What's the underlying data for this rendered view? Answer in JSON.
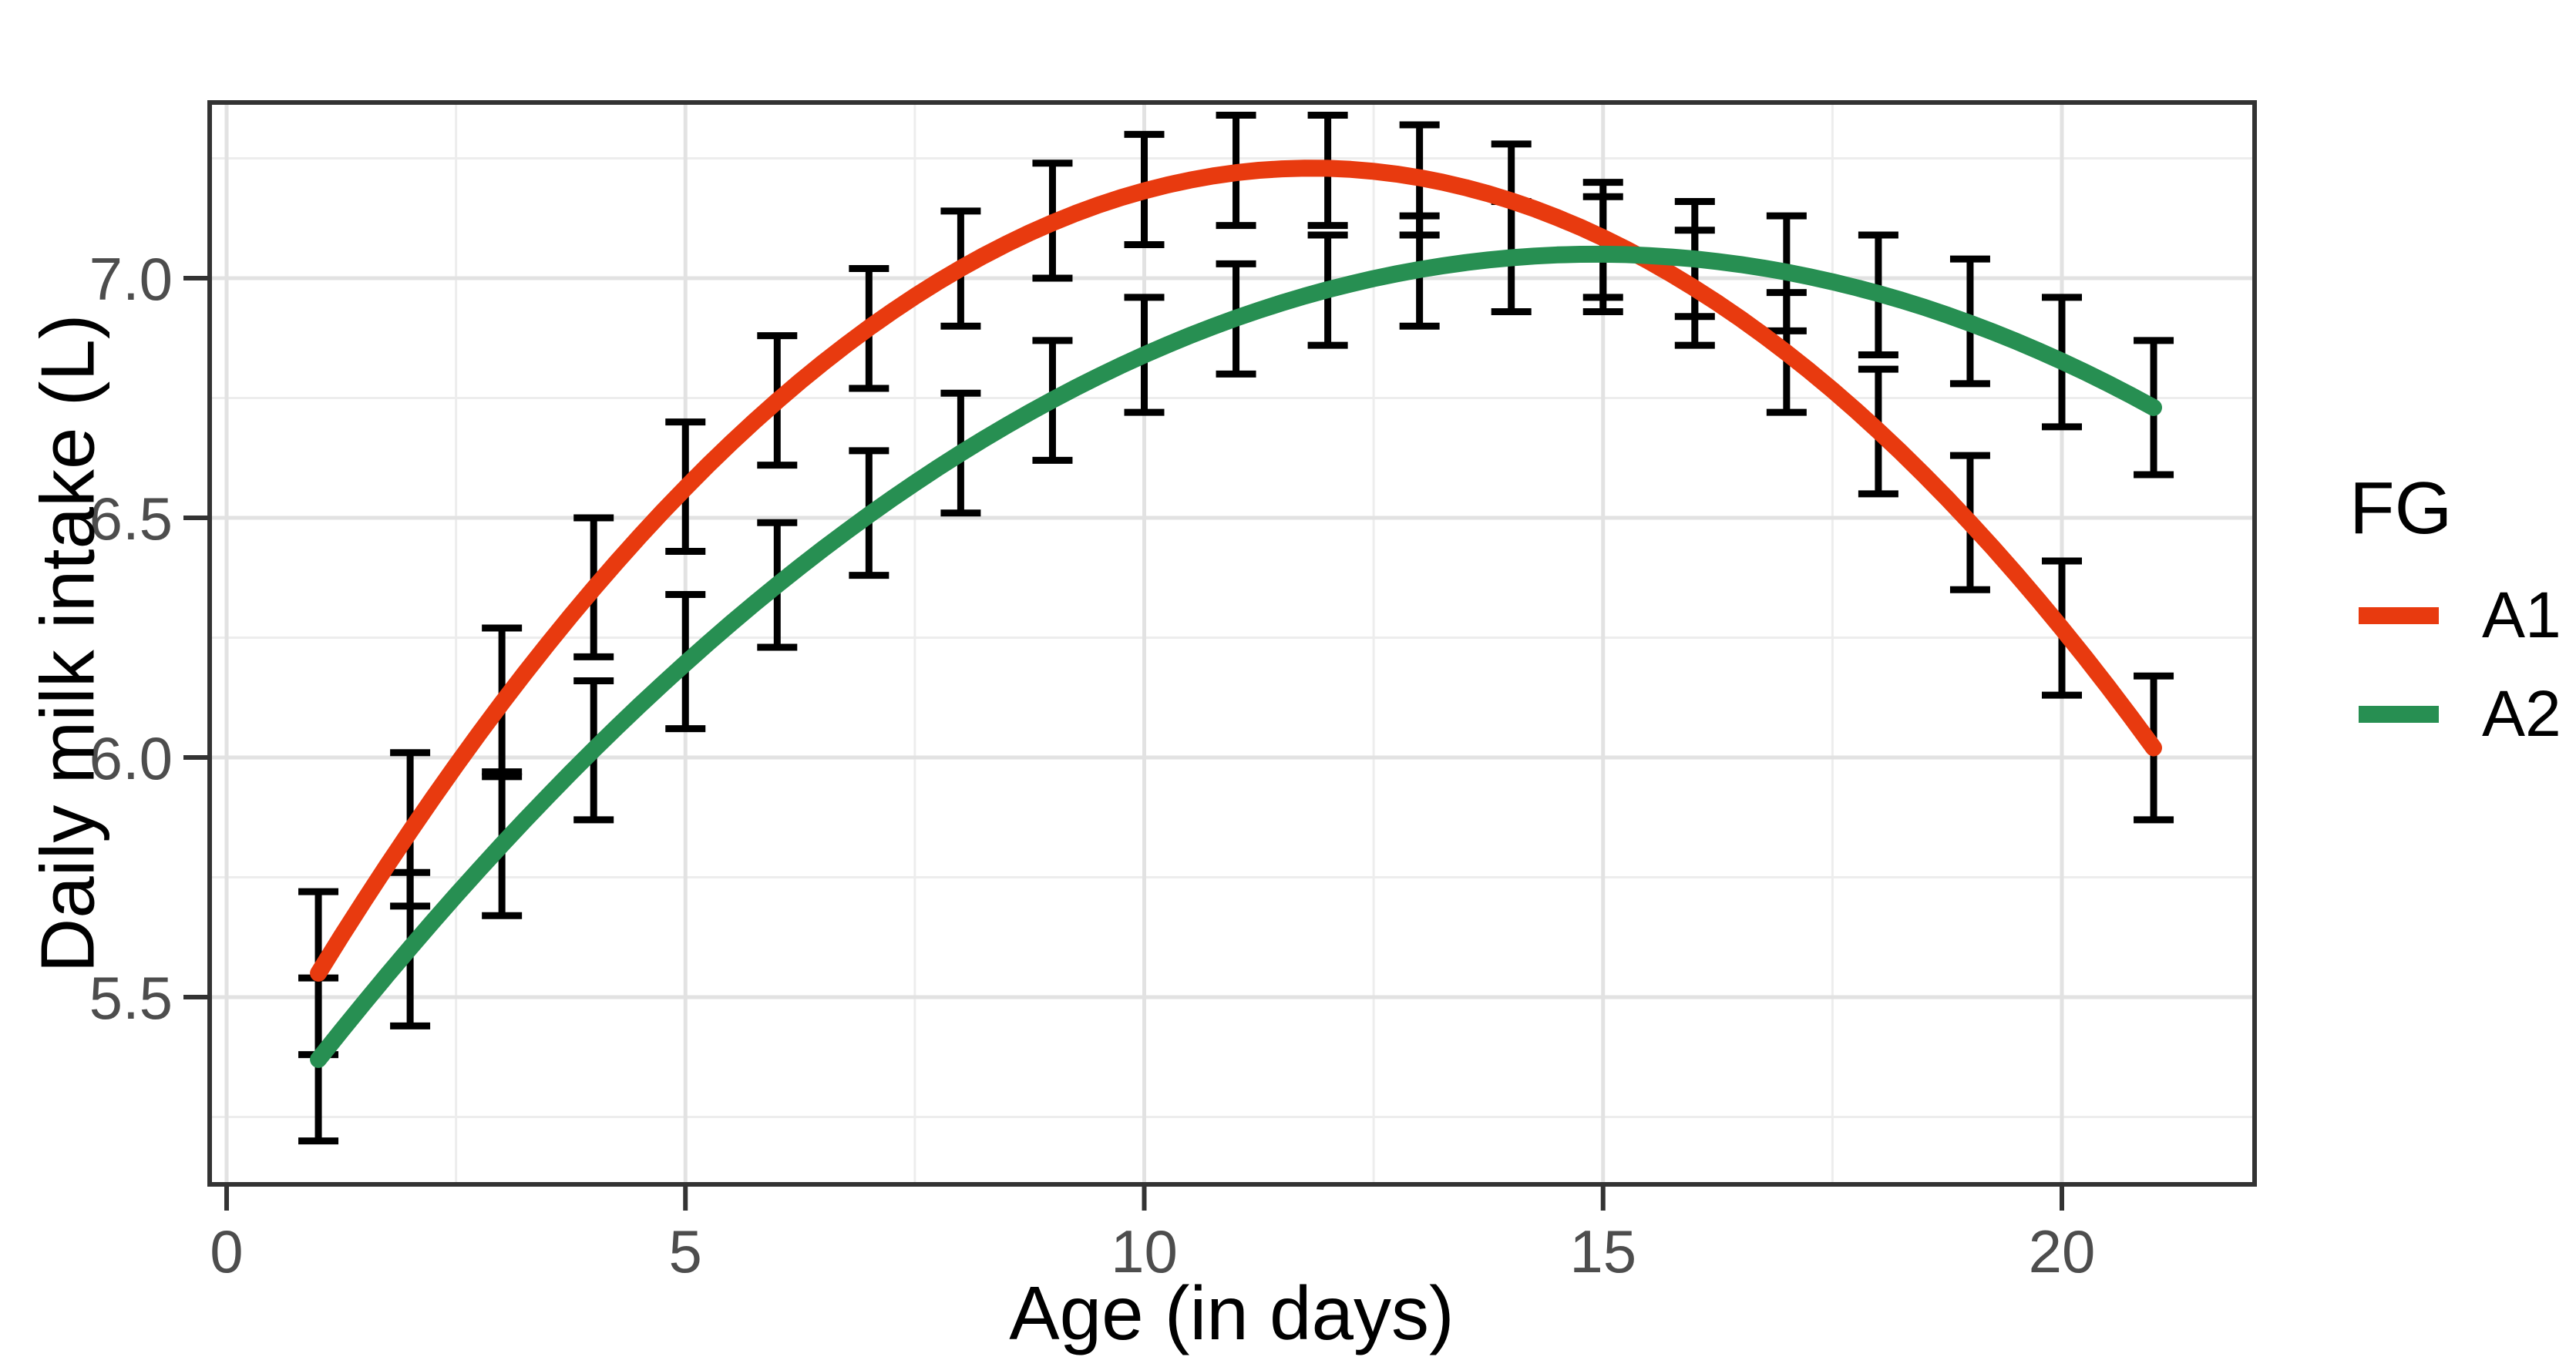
{
  "axes": {
    "x": {
      "title": "Age (in days)",
      "tick_labels": [
        "0",
        "5",
        "10",
        "15",
        "20"
      ],
      "tick_values": [
        0,
        5,
        10,
        15,
        20
      ],
      "minor_gridlines": [
        2.5,
        7.5,
        12.5,
        17.5
      ]
    },
    "y": {
      "title": "Daily milk intake (L)",
      "tick_labels": [
        "5.5",
        "6.0",
        "6.5",
        "7.0"
      ],
      "tick_values": [
        5.5,
        6.0,
        6.5,
        7.0
      ],
      "minor_gridlines": [
        5.25,
        5.75,
        6.25,
        6.75,
        7.25
      ]
    }
  },
  "legend": {
    "title": "FG",
    "items": [
      {
        "label": "A1",
        "color": "#E83A0F"
      },
      {
        "label": "A2",
        "color": "#278F52"
      }
    ]
  },
  "chart_data": {
    "type": "line",
    "title": "",
    "xlabel": "Age (in days)",
    "ylabel": "Daily milk intake (L)",
    "xlim": [
      -0.19,
      22.09
    ],
    "ylim": [
      5.11,
      7.37
    ],
    "x_ticks": [
      0,
      5,
      10,
      15,
      20
    ],
    "y_ticks": [
      5.5,
      6.0,
      6.5,
      7.0
    ],
    "grid": true,
    "legend_title": "FG",
    "legend_position": "right",
    "error_bars": true,
    "x": [
      1,
      2,
      3,
      4,
      5,
      6,
      7,
      8,
      9,
      10,
      11,
      12,
      13,
      14,
      15,
      16,
      17,
      18,
      19,
      20,
      21
    ],
    "series": [
      {
        "name": "A1",
        "color": "#E83A0F",
        "fit": {
          "type": "quadratic",
          "a": -0.01435,
          "b": 0.3392,
          "c": 5.2252
        },
        "means": [
          5.55,
          5.85,
          6.11,
          6.35,
          6.56,
          6.74,
          6.9,
          7.02,
          7.12,
          7.18,
          7.22,
          7.23,
          7.21,
          7.16,
          7.08,
          6.98,
          6.84,
          6.68,
          6.49,
          6.27,
          6.02
        ],
        "ci_low": [
          5.38,
          5.69,
          5.96,
          6.21,
          6.43,
          6.61,
          6.77,
          6.9,
          7.0,
          7.07,
          7.11,
          7.11,
          7.09,
          7.04,
          6.96,
          6.86,
          6.72,
          6.55,
          6.35,
          6.13,
          5.87
        ],
        "ci_high": [
          5.72,
          6.01,
          6.27,
          6.5,
          6.7,
          6.88,
          7.02,
          7.14,
          7.24,
          7.3,
          7.34,
          7.34,
          7.32,
          7.28,
          7.2,
          7.1,
          6.97,
          6.81,
          6.63,
          6.41,
          6.17
        ]
      },
      {
        "name": "A2",
        "color": "#278F52",
        "fit": {
          "type": "quadratic",
          "a": -0.0086667,
          "b": 0.258667,
          "c": 5.12
        },
        "means": [
          5.37,
          5.6,
          5.82,
          6.02,
          6.2,
          6.36,
          6.51,
          6.63,
          6.75,
          6.84,
          6.92,
          6.98,
          7.02,
          7.04,
          7.05,
          7.04,
          7.01,
          6.97,
          6.91,
          6.83,
          6.73
        ],
        "ci_low": [
          5.2,
          5.44,
          5.67,
          5.87,
          6.06,
          6.23,
          6.38,
          6.51,
          6.62,
          6.72,
          6.8,
          6.86,
          6.9,
          6.93,
          6.93,
          6.92,
          6.89,
          6.84,
          6.78,
          6.69,
          6.59
        ],
        "ci_high": [
          5.54,
          5.76,
          5.97,
          6.16,
          6.34,
          6.49,
          6.64,
          6.76,
          6.87,
          6.96,
          7.03,
          7.09,
          7.13,
          7.16,
          7.17,
          7.16,
          7.13,
          7.09,
          7.04,
          6.96,
          6.87
        ]
      }
    ]
  }
}
